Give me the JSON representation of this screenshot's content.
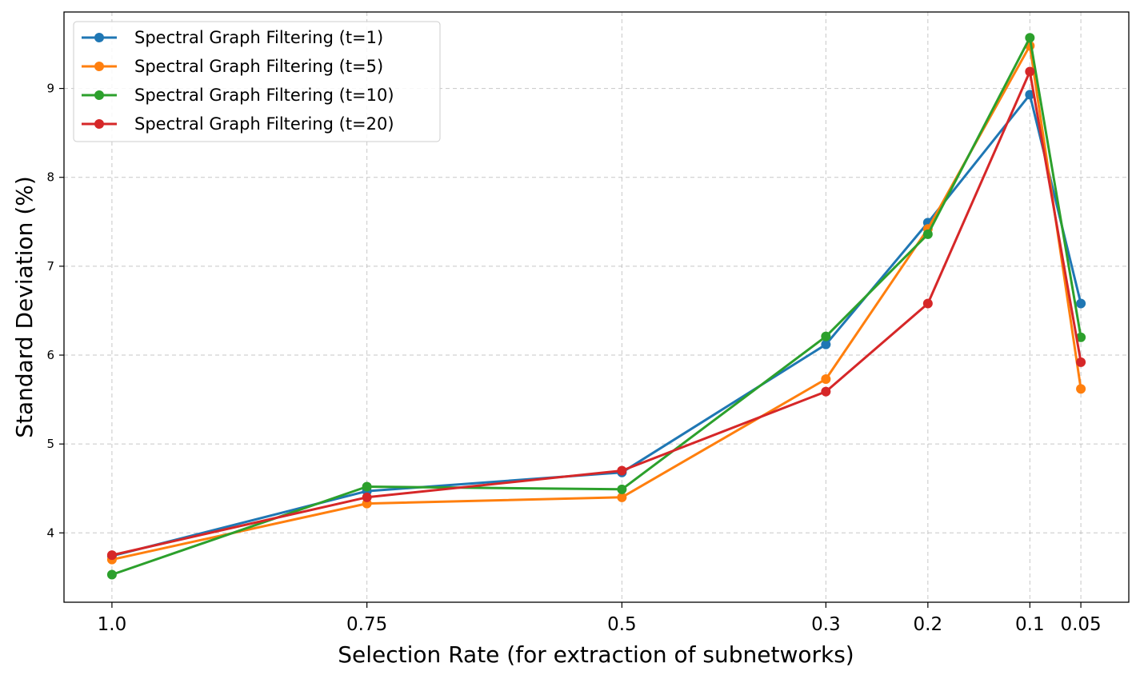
{
  "chart_data": {
    "type": "line",
    "title": "",
    "xlabel": "Selection Rate (for extraction of subnetworks)",
    "ylabel": "Standard Deviation (%)",
    "x": [
      "1.0",
      "0.75",
      "0.5",
      "0.3",
      "0.2",
      "0.1",
      "0.05"
    ],
    "x_values": [
      1.0,
      0.75,
      0.5,
      0.3,
      0.2,
      0.1,
      0.05
    ],
    "x_axis_direction": "reversed",
    "xlim": [
      1.047,
      0.003
    ],
    "ylim": [
      3.22,
      9.86
    ],
    "yticks": [
      4,
      5,
      6,
      7,
      8,
      9
    ],
    "grid": true,
    "legend_position": "top-left",
    "series": [
      {
        "name": "Spectral Graph Filtering (t=1)",
        "color": "#1f77b4",
        "values": [
          3.74,
          4.47,
          4.68,
          6.12,
          7.49,
          8.93,
          6.58
        ]
      },
      {
        "name": "Spectral Graph Filtering (t=5)",
        "color": "#ff7f0e",
        "values": [
          3.7,
          4.33,
          4.4,
          5.73,
          7.42,
          9.48,
          5.62
        ]
      },
      {
        "name": "Spectral Graph Filtering (t=10)",
        "color": "#2ca02c",
        "values": [
          3.53,
          4.52,
          4.49,
          6.21,
          7.36,
          9.57,
          6.2
        ]
      },
      {
        "name": "Spectral Graph Filtering (t=20)",
        "color": "#d62728",
        "values": [
          3.75,
          4.4,
          4.7,
          5.59,
          6.58,
          9.19,
          5.92
        ]
      }
    ]
  }
}
